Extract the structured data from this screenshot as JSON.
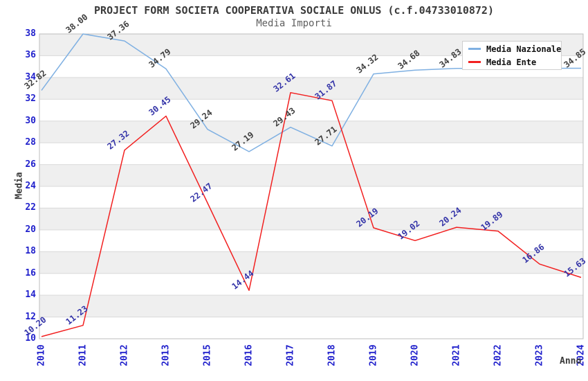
{
  "chart_data": {
    "type": "line",
    "title": "PROJECT FORM SOCIETA COOPERATIVA SOCIALE ONLUS (c.f.04733010872)",
    "subtitle": "Media Importi",
    "xlabel": "Anno",
    "ylabel": "Media",
    "categories": [
      "2010",
      "2011",
      "2012",
      "2013",
      "2015",
      "2016",
      "2017",
      "2018",
      "2019",
      "2020",
      "2021",
      "2022",
      "2023",
      "2024"
    ],
    "series": [
      {
        "name": "Media Nazionale",
        "color": "#7fb0e2",
        "label_color": "#3f3f3f",
        "values": [
          32.82,
          38.0,
          37.36,
          34.79,
          29.24,
          27.19,
          29.43,
          27.71,
          34.32,
          34.68,
          34.83,
          null,
          null,
          34.85
        ]
      },
      {
        "name": "Media Ente",
        "color": "#f22020",
        "label_color": "#3434a8",
        "values": [
          10.2,
          11.23,
          27.32,
          30.45,
          22.47,
          14.44,
          32.61,
          31.87,
          20.19,
          19.02,
          20.24,
          19.89,
          16.86,
          15.63
        ]
      }
    ],
    "ylim": [
      10,
      38
    ],
    "ytick_step": 2,
    "grid": true,
    "legend_position": "top-right",
    "band_colors": [
      "#efefef",
      "#ffffff"
    ],
    "gridline_color": "#d9d9d9",
    "plot_border_color": "#bdbdbd",
    "tick_label_color": "#2121cc"
  }
}
